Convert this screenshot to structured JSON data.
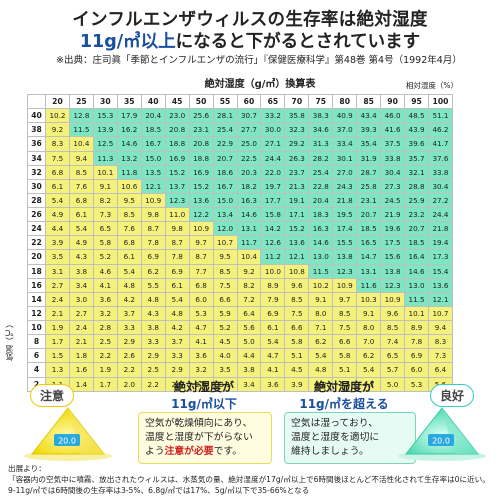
{
  "header": {
    "title_line1": "インフルエンザウィルスの生存率は絶対湿度",
    "title_line2_highlight": "11g/㎥以上",
    "title_line2_rest": "になると下がるとされています",
    "source": "※出典：庄司眞「季節とインフルエンザの流行」『保健医療科学』第48巻 第4号（1992年4月）"
  },
  "table": {
    "title": "絶対湿度（g/㎥）換算表",
    "humidity_label": "相対湿度（%）",
    "temperature_label": "気温（℃）",
    "humidity_cols": [
      "20",
      "25",
      "30",
      "35",
      "40",
      "45",
      "50",
      "55",
      "60",
      "65",
      "70",
      "75",
      "80",
      "85",
      "90",
      "95",
      "100"
    ],
    "rows": [
      {
        "t": "40",
        "v": [
          "10.2",
          "12.8",
          "15.3",
          "17.9",
          "20.4",
          "23.0",
          "25.6",
          "28.1",
          "30.7",
          "33.2",
          "35.8",
          "38.3",
          "40.9",
          "43.4",
          "46.0",
          "48.5",
          "51.1"
        ]
      },
      {
        "t": "38",
        "v": [
          "9.2",
          "11.5",
          "13.9",
          "16.2",
          "18.5",
          "20.8",
          "23.1",
          "25.4",
          "27.7",
          "30.0",
          "32.3",
          "34.6",
          "37.0",
          "39.3",
          "41.6",
          "43.9",
          "46.2"
        ]
      },
      {
        "t": "36",
        "v": [
          "8.3",
          "10.4",
          "12.5",
          "14.6",
          "16.7",
          "18.8",
          "20.8",
          "22.9",
          "25.0",
          "27.1",
          "29.2",
          "31.3",
          "33.4",
          "35.4",
          "37.5",
          "39.6",
          "41.7"
        ]
      },
      {
        "t": "34",
        "v": [
          "7.5",
          "9.4",
          "11.3",
          "13.2",
          "15.0",
          "16.9",
          "18.8",
          "20.7",
          "22.5",
          "24.4",
          "26.3",
          "28.2",
          "30.1",
          "31.9",
          "33.8",
          "35.7",
          "37.6"
        ]
      },
      {
        "t": "32",
        "v": [
          "6.8",
          "8.5",
          "10.1",
          "11.8",
          "13.5",
          "15.2",
          "16.9",
          "18.6",
          "20.3",
          "22.0",
          "23.7",
          "25.4",
          "27.0",
          "28.7",
          "30.4",
          "32.1",
          "33.8"
        ]
      },
      {
        "t": "30",
        "v": [
          "6.1",
          "7.6",
          "9.1",
          "10.6",
          "12.1",
          "13.7",
          "15.2",
          "16.7",
          "18.2",
          "19.7",
          "21.3",
          "22.8",
          "24.3",
          "25.8",
          "27.3",
          "28.8",
          "30.4"
        ]
      },
      {
        "t": "28",
        "v": [
          "5.4",
          "6.8",
          "8.2",
          "9.5",
          "10.9",
          "12.3",
          "13.6",
          "15.0",
          "16.3",
          "17.7",
          "19.1",
          "20.4",
          "21.8",
          "23.1",
          "24.5",
          "25.9",
          "27.2"
        ]
      },
      {
        "t": "26",
        "v": [
          "4.9",
          "6.1",
          "7.3",
          "8.5",
          "9.8",
          "11.0",
          "12.2",
          "13.4",
          "14.6",
          "15.8",
          "17.1",
          "18.3",
          "19.5",
          "20.7",
          "21.9",
          "23.2",
          "24.4"
        ]
      },
      {
        "t": "24",
        "v": [
          "4.4",
          "5.4",
          "6.5",
          "7.6",
          "8.7",
          "9.8",
          "10.9",
          "12.0",
          "13.1",
          "14.2",
          "15.2",
          "16.3",
          "17.4",
          "18.5",
          "19.6",
          "20.7",
          "21.8"
        ]
      },
      {
        "t": "22",
        "v": [
          "3.9",
          "4.9",
          "5.8",
          "6.8",
          "7.8",
          "8.7",
          "9.7",
          "10.7",
          "11.7",
          "12.6",
          "13.6",
          "14.6",
          "15.5",
          "16.5",
          "17.5",
          "18.5",
          "19.4"
        ]
      },
      {
        "t": "20",
        "v": [
          "3.5",
          "4.3",
          "5.2",
          "6.1",
          "6.9",
          "7.8",
          "8.7",
          "9.5",
          "10.4",
          "11.2",
          "12.1",
          "13.0",
          "13.8",
          "14.7",
          "15.6",
          "16.4",
          "17.3"
        ]
      },
      {
        "t": "18",
        "v": [
          "3.1",
          "3.8",
          "4.6",
          "5.4",
          "6.2",
          "6.9",
          "7.7",
          "8.5",
          "9.2",
          "10.0",
          "10.8",
          "11.5",
          "12.3",
          "13.1",
          "13.8",
          "14.6",
          "15.4"
        ]
      },
      {
        "t": "16",
        "v": [
          "2.7",
          "3.4",
          "4.1",
          "4.8",
          "5.5",
          "6.1",
          "6.8",
          "7.5",
          "8.2",
          "8.9",
          "9.6",
          "10.2",
          "10.9",
          "11.6",
          "12.3",
          "13.0",
          "13.6"
        ]
      },
      {
        "t": "14",
        "v": [
          "2.4",
          "3.0",
          "3.6",
          "4.2",
          "4.8",
          "5.4",
          "6.0",
          "6.6",
          "7.2",
          "7.9",
          "8.5",
          "9.1",
          "9.7",
          "10.3",
          "10.9",
          "11.5",
          "12.1"
        ]
      },
      {
        "t": "12",
        "v": [
          "2.1",
          "2.7",
          "3.2",
          "3.7",
          "4.3",
          "4.8",
          "5.3",
          "5.9",
          "6.4",
          "6.9",
          "7.5",
          "8.0",
          "8.5",
          "9.1",
          "9.6",
          "10.1",
          "10.7"
        ]
      },
      {
        "t": "10",
        "v": [
          "1.9",
          "2.4",
          "2.8",
          "3.3",
          "3.8",
          "4.2",
          "4.7",
          "5.2",
          "5.6",
          "6.1",
          "6.6",
          "7.1",
          "7.5",
          "8.0",
          "8.5",
          "8.9",
          "9.4"
        ]
      },
      {
        "t": "8",
        "v": [
          "1.7",
          "2.1",
          "2.5",
          "2.9",
          "3.3",
          "3.7",
          "4.1",
          "4.5",
          "5.0",
          "5.4",
          "5.8",
          "6.2",
          "6.6",
          "7.0",
          "7.4",
          "7.8",
          "8.3"
        ]
      },
      {
        "t": "6",
        "v": [
          "1.5",
          "1.8",
          "2.2",
          "2.6",
          "2.9",
          "3.3",
          "3.6",
          "4.0",
          "4.4",
          "4.7",
          "5.1",
          "5.4",
          "5.8",
          "6.2",
          "6.5",
          "6.9",
          "7.3"
        ]
      },
      {
        "t": "4",
        "v": [
          "1.3",
          "1.6",
          "1.9",
          "2.2",
          "2.5",
          "2.9",
          "3.2",
          "3.5",
          "3.8",
          "4.1",
          "4.5",
          "4.8",
          "5.1",
          "5.4",
          "5.7",
          "6.0",
          "6.4"
        ]
      },
      {
        "t": "2",
        "v": [
          "1.1",
          "1.4",
          "1.7",
          "2.0",
          "2.2",
          "2.5",
          "2.8",
          "3.1",
          "3.4",
          "3.6",
          "3.9",
          "4.2",
          "4.5",
          "4.7",
          "5.0",
          "5.3",
          "5.6"
        ]
      }
    ],
    "threshold": 11,
    "colors": {
      "dry": "#f5f27c",
      "good": "#7fe6c4"
    }
  },
  "legend": {
    "caution_badge": "注意",
    "good_badge": "良好",
    "device_text": "20.0",
    "dry_title_line1": "絶対湿度が",
    "dry_title_line2_highlight": "11g/㎥以下",
    "dry_body_1": "空気が乾燥傾向にあり、",
    "dry_body_2": "温度と湿度が下がらない",
    "dry_body_3a": "よう",
    "dry_body_3b": "注意が必要",
    "dry_body_3c": "です。",
    "wet_title_line1": "絶対湿度が",
    "wet_title_line2_highlight": "11g/㎥を超える",
    "wet_body_1": "空気は湿っており、",
    "wet_body_2": "温度と湿度を適切に",
    "wet_body_3": "維持しましょう。"
  },
  "footnote": {
    "line1": "出展より：",
    "line2": "「容器内の空気中に噴霧、放出されたウィルスは、水蒸気の量、絶対湿度が17g/㎥以上で6時間後ほとんど不活性化されて生存率は0に近い。",
    "line3": "9-11g/㎥では6時間後の生存率は3-5%、6.8g/㎥では17%、5g/㎥以下で35-66%となる"
  }
}
